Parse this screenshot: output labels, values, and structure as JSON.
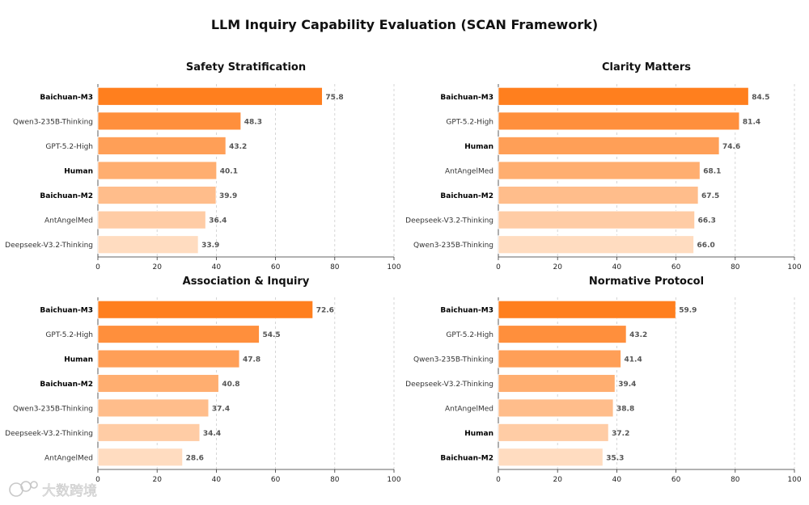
{
  "title": "LLM Inquiry Capability Evaluation (SCAN Framework)",
  "colors": {
    "bar_palette": [
      "#ff7f1e",
      "#ff8f3c",
      "#ff9f57",
      "#ffae70",
      "#ffbd8b",
      "#ffcca5",
      "#ffdcc0"
    ],
    "value_label": "#555555",
    "axis": "#333333",
    "grid": "#cccccc"
  },
  "watermark": "大数跨境",
  "chart_data": [
    {
      "type": "bar",
      "orientation": "horizontal",
      "title": "Safety Stratification",
      "categories": [
        "Baichuan-M3",
        "Qwen3-235B-Thinking",
        "GPT-5.2-High",
        "Human",
        "Baichuan-M2",
        "AntAngelMed",
        "Deepseek-V3.2-Thinking"
      ],
      "values": [
        75.8,
        48.3,
        43.2,
        40.1,
        39.9,
        36.4,
        33.9
      ],
      "bold_categories": [
        "Baichuan-M3",
        "Human",
        "Baichuan-M2"
      ],
      "xlim": [
        0,
        100
      ],
      "xticks": [
        0,
        20,
        40,
        60,
        80,
        100
      ],
      "grid": "x-dashed"
    },
    {
      "type": "bar",
      "orientation": "horizontal",
      "title": "Clarity Matters",
      "categories": [
        "Baichuan-M3",
        "GPT-5.2-High",
        "Human",
        "AntAngelMed",
        "Baichuan-M2",
        "Deepseek-V3.2-Thinking",
        "Qwen3-235B-Thinking"
      ],
      "values": [
        84.5,
        81.4,
        74.6,
        68.1,
        67.5,
        66.3,
        66.0
      ],
      "bold_categories": [
        "Baichuan-M3",
        "Human",
        "Baichuan-M2"
      ],
      "xlim": [
        0,
        100
      ],
      "xticks": [
        0,
        20,
        40,
        60,
        80,
        100
      ],
      "grid": "x-dashed"
    },
    {
      "type": "bar",
      "orientation": "horizontal",
      "title": "Association & Inquiry",
      "categories": [
        "Baichuan-M3",
        "GPT-5.2-High",
        "Human",
        "Baichuan-M2",
        "Qwen3-235B-Thinking",
        "Deepseek-V3.2-Thinking",
        "AntAngelMed"
      ],
      "values": [
        72.6,
        54.5,
        47.8,
        40.8,
        37.4,
        34.4,
        28.6
      ],
      "bold_categories": [
        "Baichuan-M3",
        "Human",
        "Baichuan-M2"
      ],
      "xlim": [
        0,
        100
      ],
      "xticks": [
        0,
        20,
        40,
        60,
        80,
        100
      ],
      "grid": "x-dashed"
    },
    {
      "type": "bar",
      "orientation": "horizontal",
      "title": "Normative Protocol",
      "categories": [
        "Baichuan-M3",
        "GPT-5.2-High",
        "Qwen3-235B-Thinking",
        "Deepseek-V3.2-Thinking",
        "AntAngelMed",
        "Human",
        "Baichuan-M2"
      ],
      "values": [
        59.9,
        43.2,
        41.4,
        39.4,
        38.8,
        37.2,
        35.3
      ],
      "bold_categories": [
        "Baichuan-M3",
        "Human",
        "Baichuan-M2"
      ],
      "xlim": [
        0,
        100
      ],
      "xticks": [
        0,
        20,
        40,
        60,
        80,
        100
      ],
      "grid": "x-dashed"
    }
  ]
}
